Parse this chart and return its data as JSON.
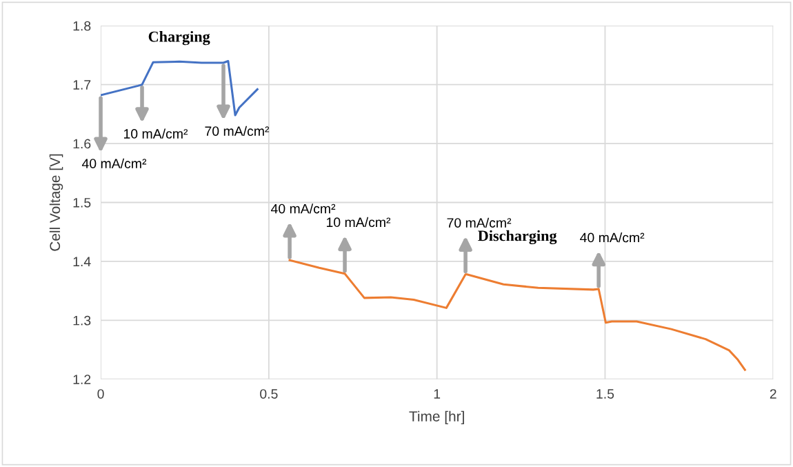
{
  "chart_data": {
    "type": "line",
    "xlabel": "Time [hr]",
    "ylabel": "Cell Voltage [V]",
    "xlim": [
      0,
      2
    ],
    "xticks": [
      0,
      0.5,
      1,
      1.5,
      2
    ],
    "ylim": [
      1.2,
      1.8
    ],
    "yticks": [
      1.2,
      1.3,
      1.4,
      1.5,
      1.6,
      1.7,
      1.8
    ],
    "grid": true,
    "series": [
      {
        "name": "Charging",
        "color": "#4472c4",
        "x": [
          0,
          0.111,
          0.123,
          0.156,
          0.234,
          0.3,
          0.365,
          0.379,
          0.4,
          0.412,
          0.466
        ],
        "values": [
          1.682,
          1.698,
          1.7,
          1.738,
          1.739,
          1.737,
          1.737,
          1.74,
          1.648,
          1.661,
          1.692
        ]
      },
      {
        "name": "Discharging",
        "color": "#ed7d31",
        "x": [
          0.562,
          0.65,
          0.726,
          0.784,
          0.863,
          0.931,
          1.028,
          1.085,
          1.089,
          1.198,
          1.301,
          1.465,
          1.481,
          1.502,
          1.52,
          1.594,
          1.697,
          1.799,
          1.869,
          1.895,
          1.916
        ],
        "values": [
          1.402,
          1.389,
          1.379,
          1.338,
          1.339,
          1.335,
          1.321,
          1.378,
          1.378,
          1.361,
          1.355,
          1.352,
          1.353,
          1.296,
          1.298,
          1.298,
          1.285,
          1.268,
          1.249,
          1.233,
          1.216
        ]
      }
    ],
    "annotations": [
      {
        "text": "40 mA/cm²",
        "x": 0,
        "y": 1.682
      },
      {
        "text": "10 mA/cm²",
        "x": 0.123,
        "y": 1.7
      },
      {
        "text": "70 mA/cm²",
        "x": 0.365,
        "y": 1.737
      },
      {
        "text": "40 mA/cm²",
        "x": 0.562,
        "y": 1.402
      },
      {
        "text": "10 mA/cm²",
        "x": 0.726,
        "y": 1.379
      },
      {
        "text": "70 mA/cm²",
        "x": 1.085,
        "y": 1.378
      },
      {
        "text": "40 mA/cm²",
        "x": 1.481,
        "y": 1.353
      }
    ]
  }
}
